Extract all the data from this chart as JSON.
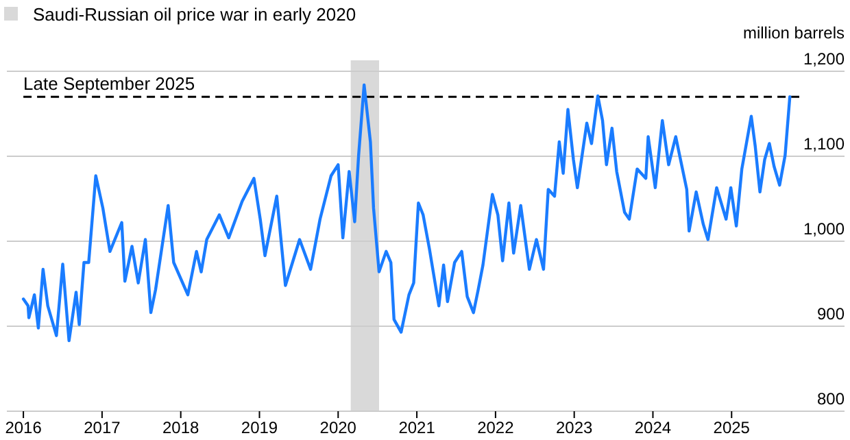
{
  "chart_data": {
    "type": "line",
    "ylabel": "million barrels",
    "legend": "top left",
    "grid": "y",
    "tick_labels": true,
    "xlim": [
      2015.79,
      2025.86
    ],
    "xticks": [
      2016,
      2017,
      2018,
      2019,
      2020,
      2021,
      2022,
      2023,
      2024,
      2025
    ],
    "ylim": [
      800,
      1200
    ],
    "yticks": [
      800,
      900,
      {
        "value": 1000,
        "label": "1,000"
      },
      {
        "value": 1100,
        "label": "1,100"
      },
      {
        "value": 1200,
        "label": "1,200"
      }
    ],
    "bands": [
      {
        "axis": "x",
        "from": 2020.16,
        "to": 2020.52,
        "label": "Saudi-Russian oil price war in early 2020",
        "color": "#d9d9d9"
      }
    ],
    "ref_lines": [
      {
        "axis": "y",
        "value": 1170,
        "label": "Late September 2025",
        "color": "#000000",
        "line_style": "dashed"
      }
    ],
    "series": [
      {
        "color": "#1a7cff",
        "x": [
          2016.0,
          2016.06,
          2016.07,
          2016.14,
          2016.19,
          2016.25,
          2016.31,
          2016.42,
          2016.5,
          2016.58,
          2016.67,
          2016.71,
          2016.77,
          2016.83,
          2016.92,
          2017.01,
          2017.1,
          2017.25,
          2017.29,
          2017.38,
          2017.46,
          2017.55,
          2017.62,
          2017.68,
          2017.84,
          2017.91,
          2018.09,
          2018.2,
          2018.26,
          2018.33,
          2018.49,
          2018.61,
          2018.78,
          2018.93,
          2019.01,
          2019.07,
          2019.22,
          2019.33,
          2019.51,
          2019.65,
          2019.77,
          2019.91,
          2020.0,
          2020.06,
          2020.14,
          2020.21,
          2020.26,
          2020.33,
          2020.41,
          2020.45,
          2020.52,
          2020.61,
          2020.67,
          2020.71,
          2020.8,
          2020.9,
          2020.96,
          2021.02,
          2021.08,
          2021.16,
          2021.28,
          2021.34,
          2021.39,
          2021.48,
          2021.57,
          2021.64,
          2021.72,
          2021.78,
          2021.84,
          2021.96,
          2022.03,
          2022.09,
          2022.17,
          2022.23,
          2022.32,
          2022.43,
          2022.52,
          2022.61,
          2022.67,
          2022.75,
          2022.81,
          2022.86,
          2022.92,
          2022.99,
          2023.04,
          2023.16,
          2023.22,
          2023.3,
          2023.36,
          2023.41,
          2023.48,
          2023.54,
          2023.64,
          2023.7,
          2023.8,
          2023.91,
          2023.94,
          2024.03,
          2024.12,
          2024.2,
          2024.29,
          2024.43,
          2024.46,
          2024.55,
          2024.64,
          2024.7,
          2024.81,
          2024.93,
          2024.99,
          2025.06,
          2025.13,
          2025.25,
          2025.3,
          2025.36,
          2025.42,
          2025.48,
          2025.54,
          2025.61,
          2025.68,
          2025.74
        ],
        "values": [
          932,
          924,
          910,
          937,
          898,
          967,
          924,
          889,
          973,
          883,
          940,
          902,
          975,
          975,
          1077,
          1039,
          988,
          1022,
          953,
          994,
          951,
          1002,
          916,
          943,
          1042,
          975,
          937,
          988,
          964,
          1002,
          1031,
          1004,
          1047,
          1074,
          1026,
          983,
          1053,
          948,
          1002,
          967,
          1026,
          1077,
          1090,
          1004,
          1082,
          1023,
          1101,
          1184,
          1117,
          1039,
          964,
          988,
          975,
          908,
          893,
          937,
          951,
          1045,
          1031,
          991,
          924,
          972,
          929,
          975,
          988,
          935,
          916,
          943,
          972,
          1055,
          1031,
          977,
          1045,
          986,
          1042,
          967,
          1002,
          967,
          1061,
          1053,
          1117,
          1080,
          1155,
          1096,
          1063,
          1139,
          1115,
          1171,
          1142,
          1090,
          1133,
          1082,
          1034,
          1026,
          1085,
          1074,
          1123,
          1063,
          1142,
          1090,
          1123,
          1061,
          1012,
          1058,
          1020,
          1002,
          1063,
          1026,
          1063,
          1018,
          1085,
          1147,
          1112,
          1058,
          1096,
          1115,
          1088,
          1066,
          1101,
          1170
        ]
      }
    ]
  }
}
